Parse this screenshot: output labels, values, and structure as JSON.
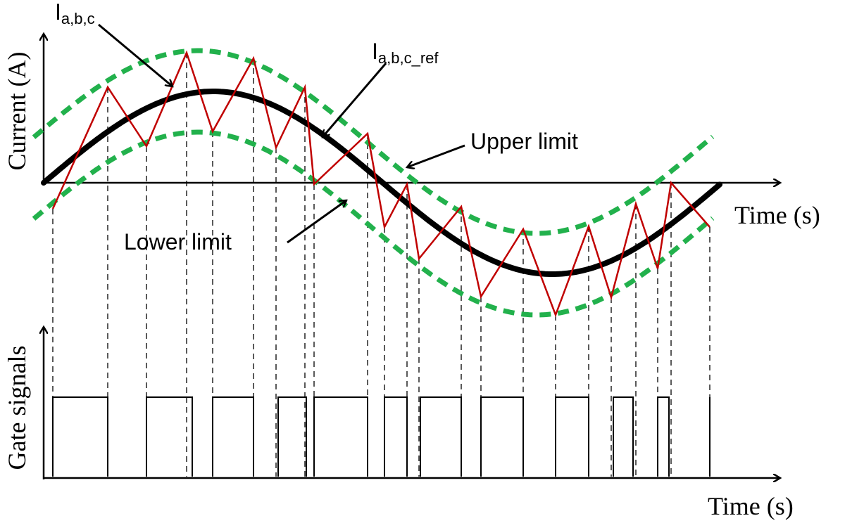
{
  "labels": {
    "i_abc": {
      "main": "I",
      "sub": "a,b,c"
    },
    "i_ref": {
      "main": "I",
      "sub": "a,b,c_ref"
    },
    "upper_limit": "Upper limit",
    "lower_limit": "Lower limit"
  },
  "top_axis": {
    "y_label": "Current (A)",
    "x_label": "Time (s)"
  },
  "bottom_axis": {
    "y_label": "Gate signals",
    "x_label": "Time (s)"
  }
}
